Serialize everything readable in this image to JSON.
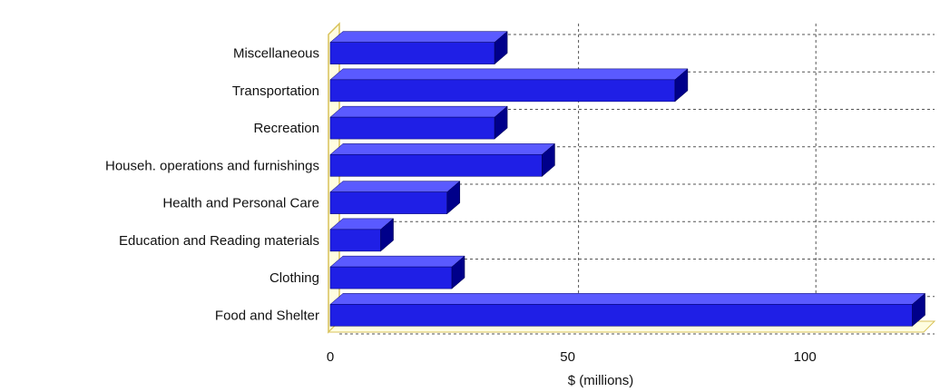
{
  "chart_data": {
    "type": "bar",
    "orientation": "horizontal",
    "categories": [
      "Miscellaneous",
      "Transportation",
      "Recreation",
      "Househ. operations and furnishings",
      "Health and Personal Care",
      "Education and Reading materials",
      "Clothing",
      "Food and Shelter"
    ],
    "values": [
      35,
      73,
      35,
      45,
      25,
      11,
      26,
      123
    ],
    "title": "",
    "xlabel": "$ (millions)",
    "ylabel": "",
    "xlim": [
      0,
      125
    ],
    "x_ticks": [
      0,
      50,
      100
    ],
    "grid": true,
    "legend": "none",
    "colors": {
      "bar_front": "#1f1fe6",
      "bar_top": "#5a5aff",
      "bar_side": "#00008a",
      "wall": "#fffde0",
      "wall_edge": "#d8c25a",
      "grid": "#555555"
    }
  }
}
